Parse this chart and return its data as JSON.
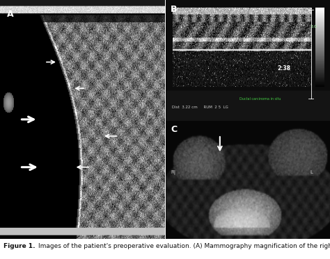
{
  "figure_title": "Images of the patient's preoperative evaluation. (A) Mammography magnification of the right breast",
  "figure_label": "Figure 1.",
  "panel_A_label": "A",
  "panel_B_label": "B",
  "panel_C_label": "C",
  "bg_color": "#ffffff",
  "caption_fontsize": 6.5,
  "label_fontsize": 9,
  "label_color": "#ffffff",
  "panel_B_text": "2:38",
  "panel_B_text2": "3.0",
  "panel_B_bottom": "Dist  3.22 cm     RUM  2 5  LG",
  "panel_B_green": "Ductal carcinoma in situ",
  "panel_C_RI": "R|",
  "panel_C_L": "L"
}
